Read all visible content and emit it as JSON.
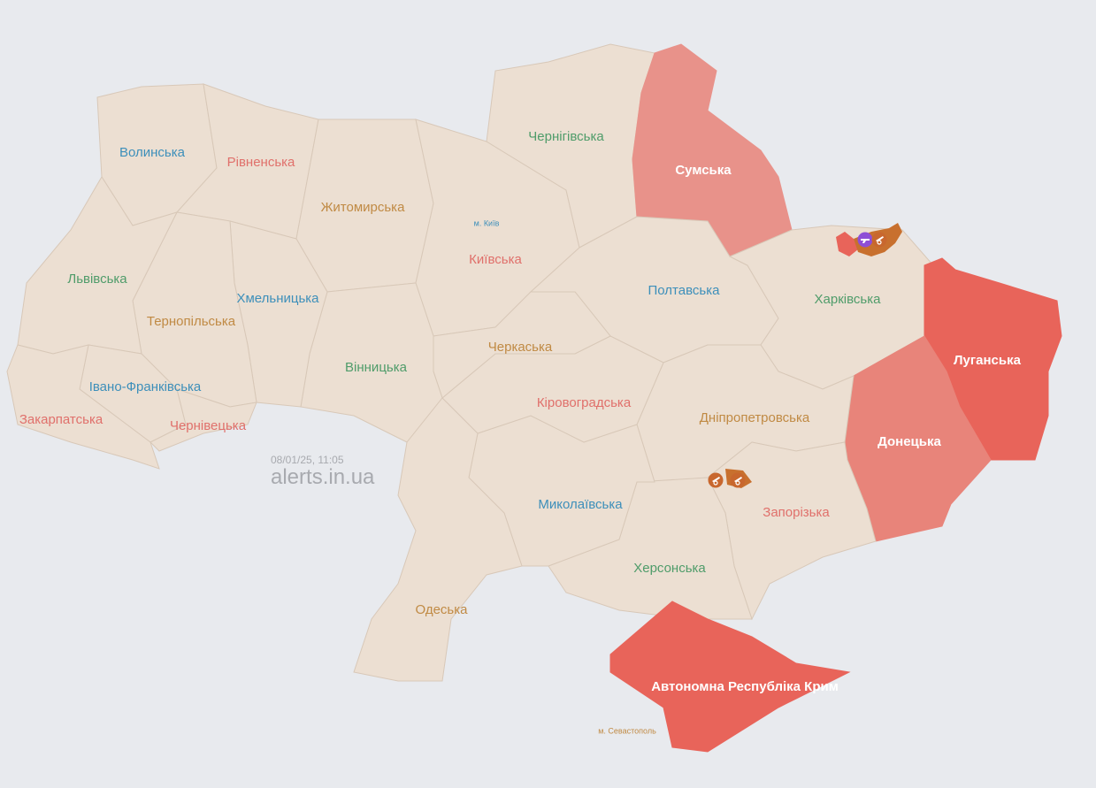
{
  "timestamp": "08/01/25, 11:05",
  "site": "alerts.in.ua",
  "colors": {
    "background": "#e8eaee",
    "no_alert": "#ecdfd2",
    "border": "#d8c8b8",
    "alert_high": "#e8645a",
    "alert_mid": "#e8847a",
    "alert_sumy": "#e8928a",
    "hromada_alert": "#c8702e",
    "icon_purple": "#8e4fd6",
    "icon_orange": "#c8672e"
  },
  "regions": [
    {
      "id": "volyn",
      "label": "Волинська",
      "status": "none",
      "label_color": "#3d8fba"
    },
    {
      "id": "rivne",
      "label": "Рівненська",
      "status": "none",
      "label_color": "#e0706b"
    },
    {
      "id": "zhytomyr",
      "label": "Житомирська",
      "status": "none",
      "label_color": "#c08a44"
    },
    {
      "id": "kyivska",
      "label": "Київська",
      "status": "none",
      "label_color": "#e0706b"
    },
    {
      "id": "chernihiv",
      "label": "Чернігівська",
      "status": "none",
      "label_color": "#4f9c6a"
    },
    {
      "id": "sumy",
      "label": "Сумська",
      "status": "alert",
      "label_color": "#ffffff"
    },
    {
      "id": "poltava",
      "label": "Полтавська",
      "status": "none",
      "label_color": "#3d8fba"
    },
    {
      "id": "kharkiv",
      "label": "Харківська",
      "status": "none",
      "label_color": "#4f9c6a"
    },
    {
      "id": "luhansk",
      "label": "Луганська",
      "status": "alert",
      "label_color": "#ffffff"
    },
    {
      "id": "donetsk",
      "label": "Донецька",
      "status": "alert",
      "label_color": "#ffffff"
    },
    {
      "id": "dnipro",
      "label": "Дніпропетровська",
      "status": "none",
      "label_color": "#c08a44"
    },
    {
      "id": "zaporizhzhia",
      "label": "Запорізька",
      "status": "none",
      "label_color": "#e0706b"
    },
    {
      "id": "kherson",
      "label": "Херсонська",
      "status": "none",
      "label_color": "#4f9c6a"
    },
    {
      "id": "mykolaiv",
      "label": "Миколаївська",
      "status": "none",
      "label_color": "#3d8fba"
    },
    {
      "id": "kirovohrad",
      "label": "Кіровоградська",
      "status": "none",
      "label_color": "#e0706b"
    },
    {
      "id": "cherkasy",
      "label": "Черкаська",
      "status": "none",
      "label_color": "#c08a44"
    },
    {
      "id": "vinnytsia",
      "label": "Вінницька",
      "status": "none",
      "label_color": "#4f9c6a"
    },
    {
      "id": "khmelnytskyi",
      "label": "Хмельницька",
      "status": "none",
      "label_color": "#3d8fba"
    },
    {
      "id": "ternopil",
      "label": "Тернопільська",
      "status": "none",
      "label_color": "#c08a44"
    },
    {
      "id": "lviv",
      "label": "Львівська",
      "status": "none",
      "label_color": "#4f9c6a"
    },
    {
      "id": "ivano-frankivsk",
      "label": "Івано-Франківська",
      "status": "none",
      "label_color": "#3d8fba"
    },
    {
      "id": "chernivtsi",
      "label": "Чернівецька",
      "status": "none",
      "label_color": "#e0706b"
    },
    {
      "id": "zakarpattia",
      "label": "Закарпатська",
      "status": "none",
      "label_color": "#e0706b"
    },
    {
      "id": "odesa",
      "label": "Одеська",
      "status": "none",
      "label_color": "#c08a44"
    },
    {
      "id": "crimea",
      "label": "Автономна Республіка Крим",
      "status": "alert",
      "label_color": "#ffffff"
    }
  ],
  "cities": [
    {
      "id": "kyiv-city",
      "label": "м. Київ",
      "label_color": "#3d8fba"
    },
    {
      "id": "sevastopol",
      "label": "м. Севастополь",
      "label_color": "#c08a44"
    }
  ],
  "threat_icons": [
    {
      "id": "kharkiv-small-arms",
      "type": "small-arms-icon",
      "color": "#8e4fd6"
    },
    {
      "id": "kharkiv-artillery",
      "type": "artillery-icon",
      "color": "#c8672e"
    },
    {
      "id": "dnipro-artillery",
      "type": "artillery-icon",
      "color": "#c8672e"
    },
    {
      "id": "zaporizhzhia-artillery",
      "type": "artillery-icon",
      "color": "#c8672e"
    }
  ]
}
